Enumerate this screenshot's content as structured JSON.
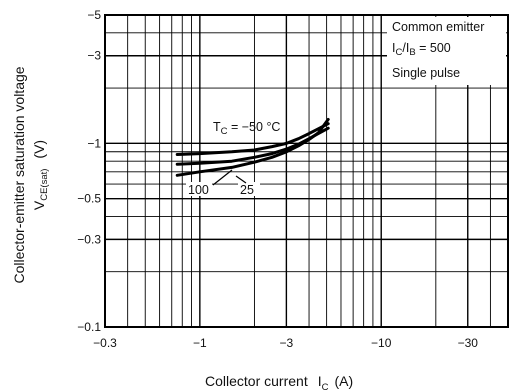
{
  "chart_data": {
    "type": "line",
    "x_scale": "log",
    "y_scale": "log",
    "xlim": [
      -0.3,
      -50
    ],
    "ylim": [
      -0.1,
      -5
    ],
    "x_ticks": [
      "−0.3",
      "−1",
      "−3",
      "−10",
      "−30"
    ],
    "x_tick_values": [
      -0.3,
      -1,
      -3,
      -10,
      -30
    ],
    "y_ticks": [
      "−5",
      "−3",
      "−1",
      "−0.5",
      "−0.3",
      "−0.1"
    ],
    "y_tick_values": [
      -5,
      -3,
      -1,
      -0.5,
      -0.3,
      -0.1
    ],
    "xlabel": {
      "main": "Collector current",
      "symbol": "I",
      "sub": "C",
      "unit": "(A)"
    },
    "ylabel": {
      "main": "Collector-emitter saturation voltage",
      "symbol": "V",
      "sub": "CE(sat)",
      "unit": "(V)"
    },
    "grid": true,
    "annotation_box": {
      "line1": "Common emitter",
      "line2": {
        "p1": "I",
        "s1": "C",
        "mid": "/I",
        "s2": "B",
        "rest": " = 500"
      },
      "line3": "Single pulse"
    },
    "series": [
      {
        "name_prefix": "T",
        "name_sub": "C",
        "name_rest": " = −50 °C",
        "x": [
          -0.75,
          -1,
          -1.5,
          -2,
          -2.5,
          -3,
          -3.5,
          -4,
          -4.5,
          -5.1
        ],
        "y": [
          -0.87,
          -0.88,
          -0.9,
          -0.92,
          -0.96,
          -1.0,
          -1.06,
          -1.13,
          -1.2,
          -1.28
        ]
      },
      {
        "name_prefix": "",
        "name_sub": "",
        "name_rest": "25",
        "x": [
          -0.75,
          -1,
          -1.5,
          -2,
          -2.5,
          -3,
          -3.5,
          -4,
          -4.5,
          -5.1
        ],
        "y": [
          -0.77,
          -0.78,
          -0.8,
          -0.84,
          -0.88,
          -0.93,
          -0.99,
          -1.06,
          -1.13,
          -1.21
        ]
      },
      {
        "name_prefix": "",
        "name_sub": "",
        "name_rest": "100",
        "x": [
          -0.75,
          -1,
          -1.5,
          -2,
          -2.5,
          -3,
          -3.5,
          -4,
          -4.5,
          -5.1
        ],
        "y": [
          -0.67,
          -0.7,
          -0.74,
          -0.79,
          -0.84,
          -0.9,
          -0.97,
          -1.05,
          -1.14,
          -1.35
        ]
      }
    ]
  }
}
